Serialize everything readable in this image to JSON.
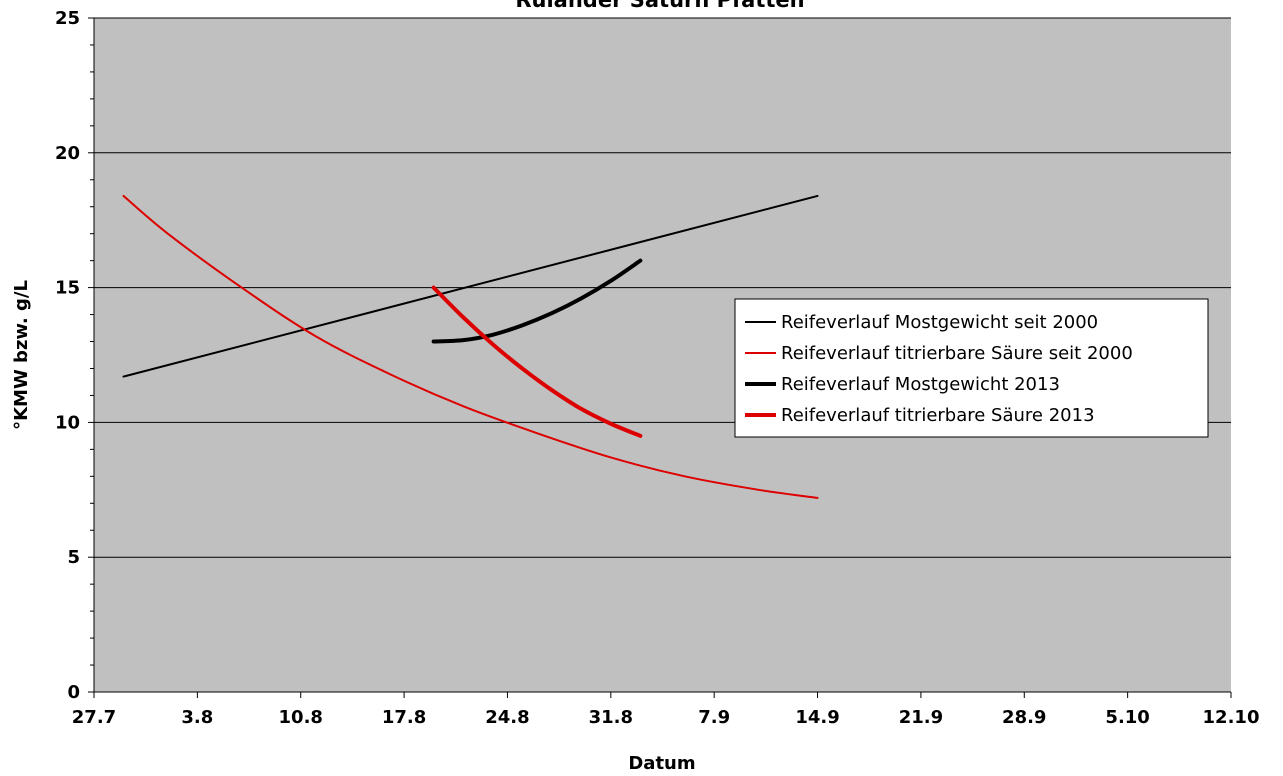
{
  "chart_data": {
    "type": "line",
    "title": "Ruländer Saturn Pfatten",
    "xlabel": "Datum",
    "ylabel": "°KMW bzw. g/L",
    "x_tick_labels": [
      "27.7",
      "3.8",
      "10.8",
      "17.8",
      "24.8",
      "31.8",
      "7.9",
      "14.9",
      "21.9",
      "28.9",
      "5.10",
      "12.10"
    ],
    "y_ticks": [
      0,
      5,
      10,
      15,
      20,
      25
    ],
    "ylim": [
      0,
      25
    ],
    "x_unit": "days",
    "xlim": [
      0,
      77
    ],
    "grid": "horizontal",
    "plot_background": "#c0c0c0",
    "legend_position": "right",
    "series": [
      {
        "name": "Reifeverlauf Mostgewicht seit 2000",
        "color": "#000000",
        "width": 2,
        "x": [
          2,
          49
        ],
        "y": [
          11.7,
          18.4
        ]
      },
      {
        "name": "Reifeverlauf titrierbare Säure seit 2000",
        "color": "#dd0000",
        "width": 2,
        "x": [
          2,
          5,
          10,
          15,
          20,
          25,
          30,
          35,
          40,
          45,
          49
        ],
        "y": [
          18.4,
          17.0,
          15.0,
          13.2,
          11.8,
          10.6,
          9.6,
          8.7,
          8.0,
          7.5,
          7.2
        ]
      },
      {
        "name": "Reifeverlauf Mostgewicht 2013",
        "color": "#000000",
        "width": 4,
        "x": [
          23,
          25,
          27,
          29,
          31,
          33,
          35,
          37
        ],
        "y": [
          13.0,
          13.05,
          13.25,
          13.6,
          14.05,
          14.6,
          15.25,
          16.0
        ]
      },
      {
        "name": "Reifeverlauf titrierbare Säure 2013",
        "color": "#dd0000",
        "width": 4,
        "x": [
          23,
          25,
          27,
          29,
          31,
          33,
          35,
          37
        ],
        "y": [
          15.0,
          13.9,
          12.9,
          12.0,
          11.2,
          10.5,
          9.95,
          9.5
        ]
      }
    ]
  }
}
